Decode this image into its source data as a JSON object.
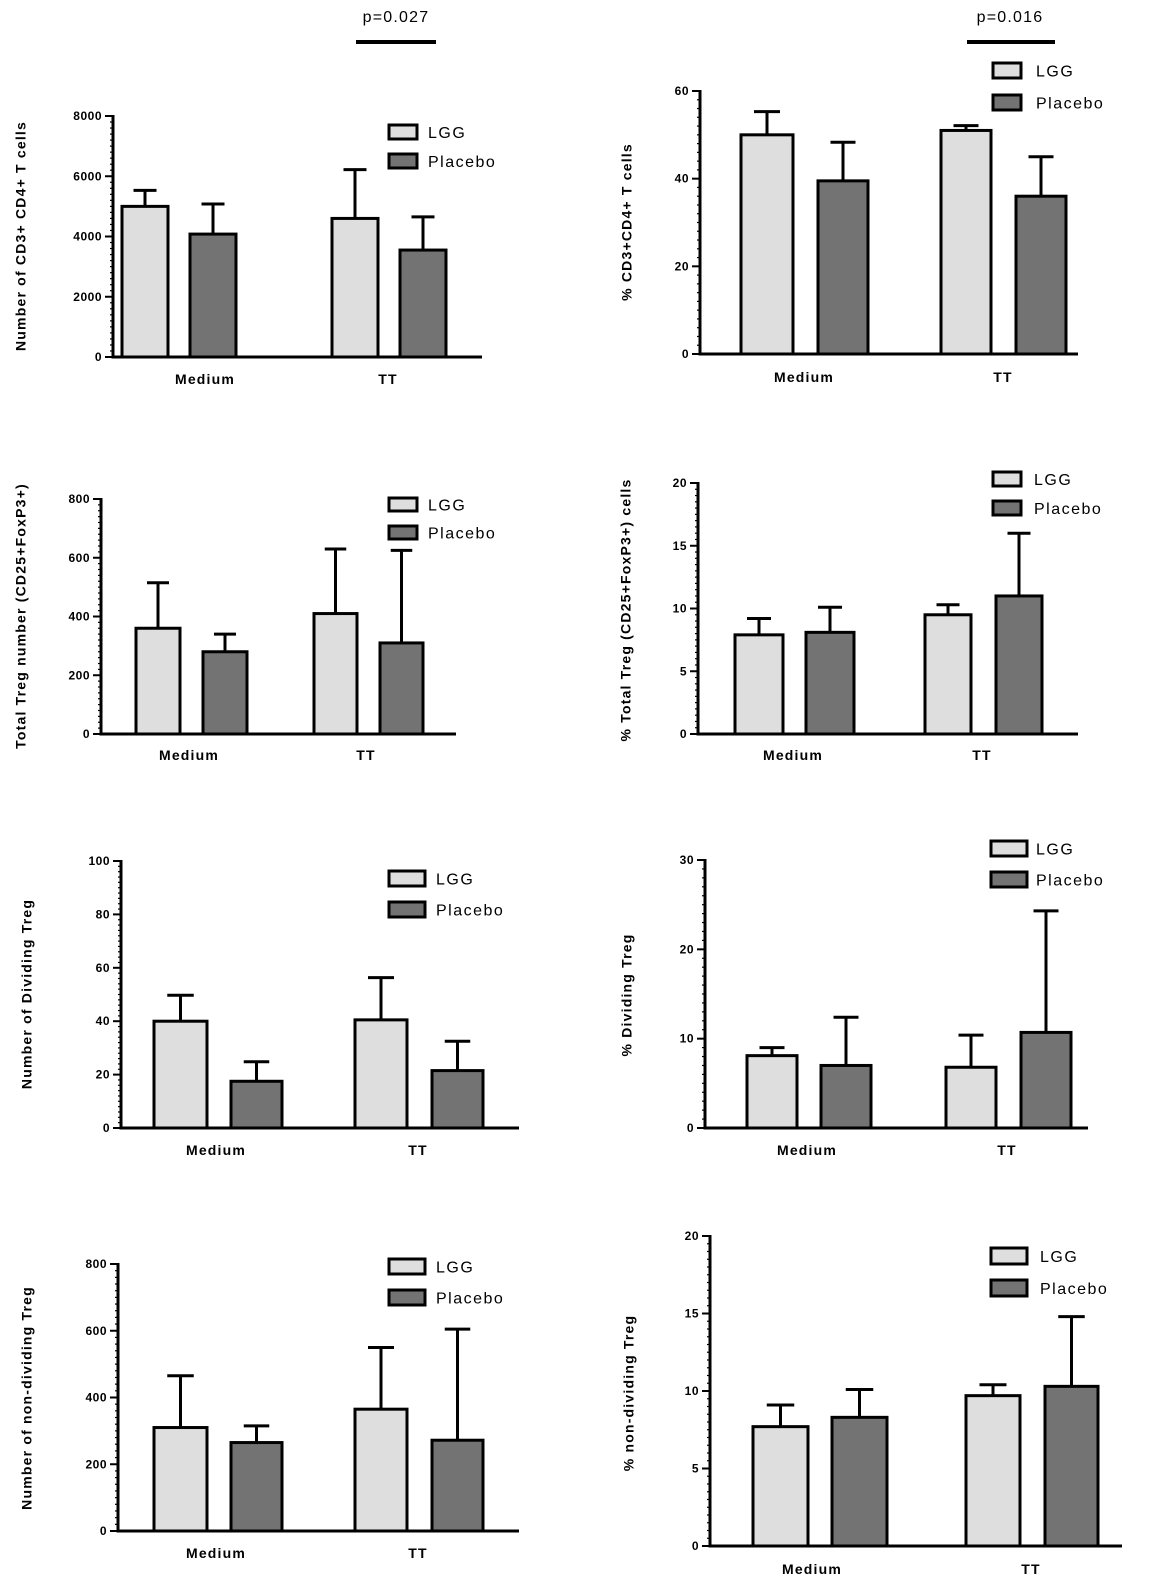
{
  "colors": {
    "lgg": "#dedede",
    "placebo": "#737373",
    "axis": "#000000"
  },
  "chart_data": [
    {
      "type": "bar",
      "categories": [
        "Medium",
        "TT"
      ],
      "series": [
        {
          "name": "LGG",
          "values": [
            5000,
            4600
          ],
          "errors": [
            530,
            1620
          ]
        },
        {
          "name": "Placebo",
          "values": [
            4080,
            3550
          ],
          "errors": [
            1000,
            1100
          ]
        }
      ],
      "ylabel": "Number of CD3+ CD4+ T cells",
      "ylim": [
        0,
        8000
      ],
      "yticks": [
        0,
        2000,
        4000,
        6000,
        8000
      ],
      "legend": "top-right",
      "annotation": "p=0.027"
    },
    {
      "type": "bar",
      "categories": [
        "Medium",
        "TT"
      ],
      "series": [
        {
          "name": "LGG",
          "values": [
            50,
            51
          ],
          "errors": [
            5.3,
            1.1
          ]
        },
        {
          "name": "Placebo",
          "values": [
            39.5,
            36
          ],
          "errors": [
            8.8,
            9
          ]
        }
      ],
      "ylabel": "% CD3+CD4+ T cells",
      "ylim": [
        0,
        60
      ],
      "yticks": [
        0,
        20,
        40,
        60
      ],
      "legend": "top-right",
      "annotation": "p=0.016"
    },
    {
      "type": "bar",
      "categories": [
        "Medium",
        "TT"
      ],
      "series": [
        {
          "name": "LGG",
          "values": [
            360,
            410
          ],
          "errors": [
            155,
            220
          ]
        },
        {
          "name": "Placebo",
          "values": [
            280,
            310
          ],
          "errors": [
            60,
            315
          ]
        }
      ],
      "ylabel": "Total Treg number (CD25+FoxP3+)",
      "ylim": [
        0,
        800
      ],
      "yticks": [
        0,
        200,
        400,
        600,
        800
      ],
      "legend": "top-right"
    },
    {
      "type": "bar",
      "categories": [
        "Medium",
        "TT"
      ],
      "series": [
        {
          "name": "LGG",
          "values": [
            7.9,
            9.5
          ],
          "errors": [
            1.3,
            0.8
          ]
        },
        {
          "name": "Placebo",
          "values": [
            8.1,
            11
          ],
          "errors": [
            2,
            5
          ]
        }
      ],
      "ylabel": "% Total Treg (CD25+FoxP3+) cells",
      "ylim": [
        0,
        20
      ],
      "yticks": [
        0,
        5,
        10,
        15,
        20
      ],
      "legend": "top-right"
    },
    {
      "type": "bar",
      "categories": [
        "Medium",
        "TT"
      ],
      "series": [
        {
          "name": "LGG",
          "values": [
            40,
            40.5
          ],
          "errors": [
            9.7,
            15.8
          ]
        },
        {
          "name": "Placebo",
          "values": [
            17.5,
            21.5
          ],
          "errors": [
            7.3,
            11
          ]
        }
      ],
      "ylabel": "Number of Dividing Treg",
      "ylim": [
        0,
        100
      ],
      "yticks": [
        0,
        20,
        40,
        60,
        80,
        100
      ],
      "legend": "top-right"
    },
    {
      "type": "bar",
      "categories": [
        "Medium",
        "TT"
      ],
      "series": [
        {
          "name": "LGG",
          "values": [
            8.1,
            6.8
          ],
          "errors": [
            0.9,
            3.6
          ]
        },
        {
          "name": "Placebo",
          "values": [
            7,
            10.7
          ],
          "errors": [
            5.4,
            13.6
          ]
        }
      ],
      "ylabel": "% Dividing Treg",
      "ylim": [
        0,
        30
      ],
      "yticks": [
        0,
        10,
        20,
        30
      ],
      "legend": "top-right"
    },
    {
      "type": "bar",
      "categories": [
        "Medium",
        "TT"
      ],
      "series": [
        {
          "name": "LGG",
          "values": [
            310,
            365
          ],
          "errors": [
            155,
            185
          ]
        },
        {
          "name": "Placebo",
          "values": [
            265,
            272
          ],
          "errors": [
            50,
            333
          ]
        }
      ],
      "ylabel": "Number of non-dividing Treg",
      "ylim": [
        0,
        800
      ],
      "yticks": [
        0,
        200,
        400,
        600,
        800
      ],
      "legend": "top-right"
    },
    {
      "type": "bar",
      "categories": [
        "Medium",
        "TT"
      ],
      "series": [
        {
          "name": "LGG",
          "values": [
            7.7,
            9.7
          ],
          "errors": [
            1.4,
            0.7
          ]
        },
        {
          "name": "Placebo",
          "values": [
            8.3,
            10.3
          ],
          "errors": [
            1.8,
            4.5
          ]
        }
      ],
      "ylabel": "% non-dividing Treg",
      "ylim": [
        0,
        20
      ],
      "yticks": [
        0,
        5,
        10,
        15,
        20
      ],
      "legend": "top-right"
    }
  ]
}
